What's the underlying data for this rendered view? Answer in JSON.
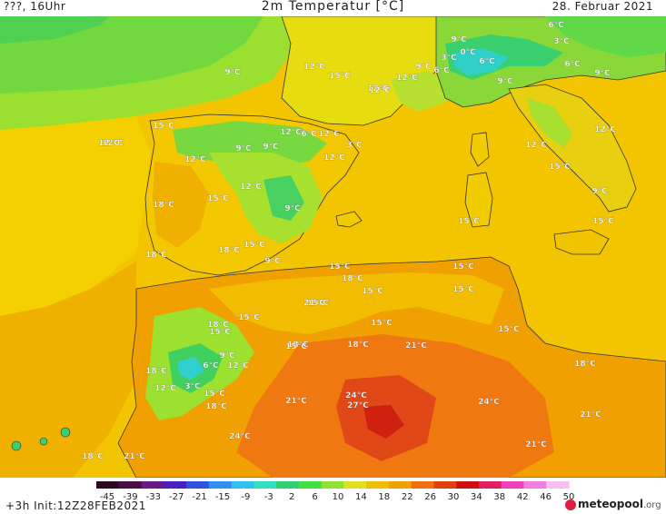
{
  "header": {
    "left": "???, 16Uhr",
    "title": "2m Temperatur [°C]",
    "right": "28. Februar 2021"
  },
  "footer": {
    "init": "+3h  Init:12Z28FEB2021",
    "brand": "meteo",
    "brand_bold": "pool",
    "brand_tld": ".org"
  },
  "legend": {
    "ticks": [
      "-45",
      "-39",
      "-33",
      "-27",
      "-21",
      "-15",
      "-9",
      "-3",
      "2",
      "6",
      "10",
      "14",
      "18",
      "22",
      "26",
      "30",
      "34",
      "38",
      "42",
      "46",
      "50"
    ],
    "colors": [
      "#2a0a20",
      "#4a1040",
      "#6a1a80",
      "#4a20c0",
      "#3050e0",
      "#3090f0",
      "#30c0f0",
      "#30e0c0",
      "#30d070",
      "#40e040",
      "#90e030",
      "#e0e020",
      "#f0c000",
      "#f0a000",
      "#f07010",
      "#e04010",
      "#d01010",
      "#e02060",
      "#f040c0",
      "#f080e0",
      "#f8c0f0"
    ]
  },
  "temperature_labels": [
    {
      "text": "9°C"
    },
    {
      "text": "6°C"
    },
    {
      "text": "3°C"
    },
    {
      "text": "0°C"
    },
    {
      "text": "3°C"
    },
    {
      "text": "6°C"
    },
    {
      "text": "12°C"
    },
    {
      "text": "15°C"
    },
    {
      "text": "12°C"
    },
    {
      "text": "12°C"
    },
    {
      "text": "9°C"
    },
    {
      "text": "6°C"
    },
    {
      "text": "9°C"
    },
    {
      "text": "6°C"
    },
    {
      "text": "9°C"
    },
    {
      "text": "9°C"
    },
    {
      "text": "15°C"
    },
    {
      "text": "12°C"
    },
    {
      "text": "9°C"
    },
    {
      "text": "6°C"
    },
    {
      "text": "12°C"
    },
    {
      "text": "3°C"
    },
    {
      "text": "12°C"
    },
    {
      "text": "12°C"
    },
    {
      "text": "12°C"
    },
    {
      "text": "9°C"
    },
    {
      "text": "9°C"
    },
    {
      "text": "12°C"
    },
    {
      "text": "15°C"
    },
    {
      "text": "12°C"
    },
    {
      "text": "12°C"
    },
    {
      "text": "18°C"
    },
    {
      "text": "15°C"
    },
    {
      "text": "9°C"
    },
    {
      "text": "12°C"
    },
    {
      "text": "15°C"
    },
    {
      "text": "15°C"
    },
    {
      "text": "18°C"
    },
    {
      "text": "15°C"
    },
    {
      "text": "9°C"
    },
    {
      "text": "15°C"
    },
    {
      "text": "15°C"
    },
    {
      "text": "15°C"
    },
    {
      "text": "15°C"
    },
    {
      "text": "18°C"
    },
    {
      "text": "15°C"
    },
    {
      "text": "18°C"
    },
    {
      "text": "21°C"
    },
    {
      "text": "15°C"
    },
    {
      "text": "18°C"
    },
    {
      "text": "15°C"
    },
    {
      "text": "15°C"
    },
    {
      "text": "18°C"
    },
    {
      "text": "15°C"
    },
    {
      "text": "15°C"
    },
    {
      "text": "18°C"
    },
    {
      "text": "21°C"
    },
    {
      "text": "18°C"
    },
    {
      "text": "9°C"
    },
    {
      "text": "6°C"
    },
    {
      "text": "12°C"
    },
    {
      "text": "18°C"
    },
    {
      "text": "12°C"
    },
    {
      "text": "3°C"
    },
    {
      "text": "15°C"
    },
    {
      "text": "18°C"
    },
    {
      "text": "21°C"
    },
    {
      "text": "24°C"
    },
    {
      "text": "27°C"
    },
    {
      "text": "24°C"
    },
    {
      "text": "21°C"
    },
    {
      "text": "24°C"
    },
    {
      "text": "21°C"
    },
    {
      "text": "18°C"
    },
    {
      "text": "21°C"
    },
    {
      "text": "12°C"
    }
  ]
}
